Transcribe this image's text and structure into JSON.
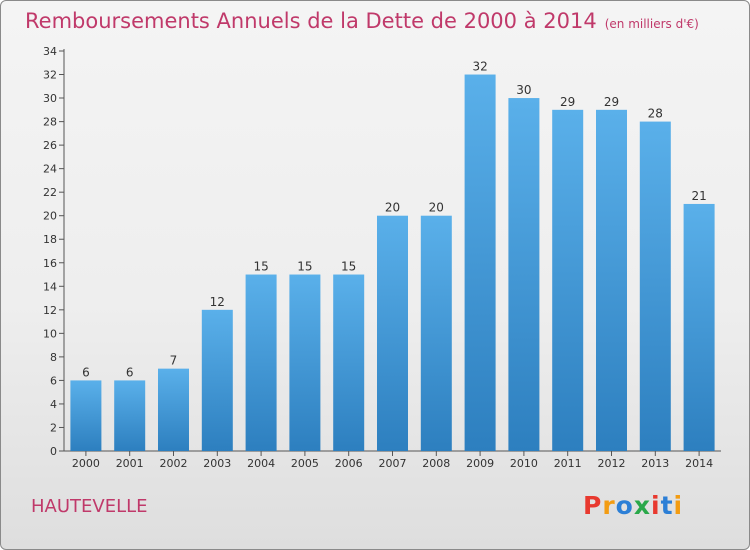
{
  "title": "Remboursements Annuels de la Dette de 2000 à 2014",
  "subtitle": "(en milliers d'€)",
  "commune": "HAUTEVELLE",
  "logo": "Proxiti",
  "colors": {
    "title": "#c0396a",
    "bar_top": "#5ab0ea",
    "bar_bottom": "#2d7fbf",
    "logo": [
      "#e8392f",
      "#f39c12",
      "#2c7fd6",
      "#2aa84a",
      "#e8392f",
      "#2c7fd6",
      "#f39c12"
    ]
  },
  "chart_data": {
    "type": "bar",
    "title": "Remboursements Annuels de la Dette de 2000 à 2014",
    "xlabel": "",
    "ylabel": "",
    "categories": [
      "2000",
      "2001",
      "2002",
      "2003",
      "2004",
      "2005",
      "2006",
      "2007",
      "2008",
      "2009",
      "2010",
      "2011",
      "2012",
      "2013",
      "2014"
    ],
    "values": [
      6,
      6,
      7,
      12,
      15,
      15,
      15,
      20,
      20,
      32,
      30,
      29,
      29,
      28,
      21
    ],
    "ylim": [
      0,
      34
    ],
    "yticks": [
      0,
      2,
      4,
      6,
      8,
      10,
      12,
      14,
      16,
      18,
      20,
      22,
      24,
      26,
      28,
      30,
      32,
      34
    ],
    "grid": false
  }
}
